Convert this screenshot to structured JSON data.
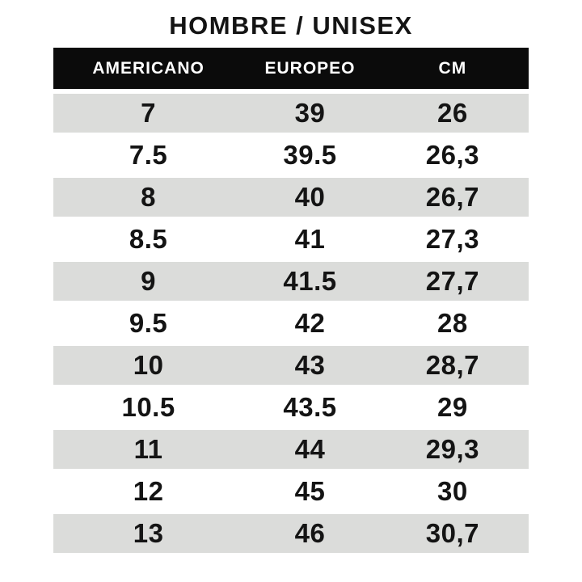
{
  "title": "HOMBRE / UNISEX",
  "chart_data": {
    "type": "table",
    "title": "HOMBRE / UNISEX",
    "columns": [
      "AMERICANO",
      "EUROPEO",
      "CM"
    ],
    "rows": [
      [
        "7",
        "39",
        "26"
      ],
      [
        "7.5",
        "39.5",
        "26,3"
      ],
      [
        "8",
        "40",
        "26,7"
      ],
      [
        "8.5",
        "41",
        "27,3"
      ],
      [
        "9",
        "41.5",
        "27,7"
      ],
      [
        "9.5",
        "42",
        "28"
      ],
      [
        "10",
        "43",
        "28,7"
      ],
      [
        "10.5",
        "43.5",
        "29"
      ],
      [
        "11",
        "44",
        "29,3"
      ],
      [
        "12",
        "45",
        "30"
      ],
      [
        "13",
        "46",
        "30,7"
      ]
    ],
    "layout": {
      "striped": true,
      "stripe_pattern": "first-row-shaded-then-alternating",
      "header_style": "inverted-black-bar"
    }
  },
  "colors": {
    "background": "#ffffff",
    "header_bg": "#0b0b0b",
    "header_text": "#ffffff",
    "row_alt_bg": "#dbdcda",
    "text": "#141414"
  }
}
